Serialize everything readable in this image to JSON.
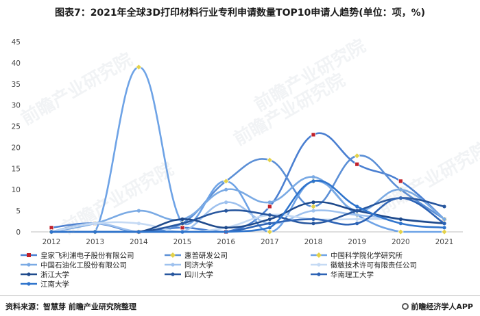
{
  "title": "图表7：2021年全球3D打印材料行业专利申请数量TOP10申请人趋势(单位：项，%)",
  "source": "资料来源：智慧芽 前瞻产业研究院整理",
  "brand": "前瞻经济学人APP",
  "watermark": "前瞻产业研究院",
  "chart_data": {
    "type": "line",
    "x": [
      "2012",
      "2013",
      "2014",
      "2015",
      "2016",
      "2017",
      "2018",
      "2019",
      "2020",
      "2021"
    ],
    "ylim": [
      0,
      45
    ],
    "yticks": [
      "0",
      "5",
      "10",
      "15",
      "20",
      "25",
      "30",
      "35",
      "40",
      "45"
    ],
    "grid": false,
    "legend_position": "bottom",
    "series": [
      {
        "name": "皇家飞利浦电子股份有限公司",
        "color": "#4a7fd1",
        "marker": "square-red",
        "values": [
          1,
          2,
          0,
          1,
          0,
          6,
          23,
          16,
          12,
          3
        ]
      },
      {
        "name": "惠普研发公司",
        "color": "#5b8fd6",
        "marker": "diamond-yellow",
        "values": [
          0,
          2,
          0,
          2,
          12,
          17,
          6,
          18,
          10,
          3
        ]
      },
      {
        "name": "中国科学院化学研究所",
        "color": "#6ea3e6",
        "marker": "diamond-yellow",
        "values": [
          0,
          0,
          39,
          2,
          12,
          0,
          12,
          4,
          0,
          0
        ]
      },
      {
        "name": "中国石油化工股份有限公司",
        "color": "#7aaae4",
        "marker": "dot",
        "values": [
          0,
          2,
          5,
          3,
          10,
          7,
          13,
          5,
          10,
          3
        ]
      },
      {
        "name": "同济大学",
        "color": "#9ec1ee",
        "marker": "dot",
        "values": [
          0,
          2,
          0,
          0,
          7,
          2,
          5,
          4,
          3,
          2
        ]
      },
      {
        "name": "徽敏技术许可有限责任公司",
        "color": "#c5daf4",
        "marker": "dot",
        "values": [
          0,
          2,
          2,
          0,
          1,
          4,
          3,
          3,
          3,
          2
        ]
      },
      {
        "name": "浙江大学",
        "color": "#1f4a8c",
        "marker": "dot",
        "values": [
          0,
          0,
          0,
          3,
          1,
          3,
          7,
          5,
          3,
          2
        ]
      },
      {
        "name": "四川大学",
        "color": "#27569e",
        "marker": "dot",
        "values": [
          0,
          0,
          0,
          2,
          5,
          4,
          2,
          5,
          8,
          6
        ]
      },
      {
        "name": "华南理工大学",
        "color": "#2d63b5",
        "marker": "dot",
        "values": [
          0,
          0,
          0,
          0,
          0,
          2,
          3,
          2,
          8,
          2
        ]
      },
      {
        "name": "江南大学",
        "color": "#2f74cc",
        "marker": "dot",
        "values": [
          0,
          0,
          0,
          0,
          0,
          1,
          12,
          6,
          2,
          1
        ]
      }
    ]
  }
}
